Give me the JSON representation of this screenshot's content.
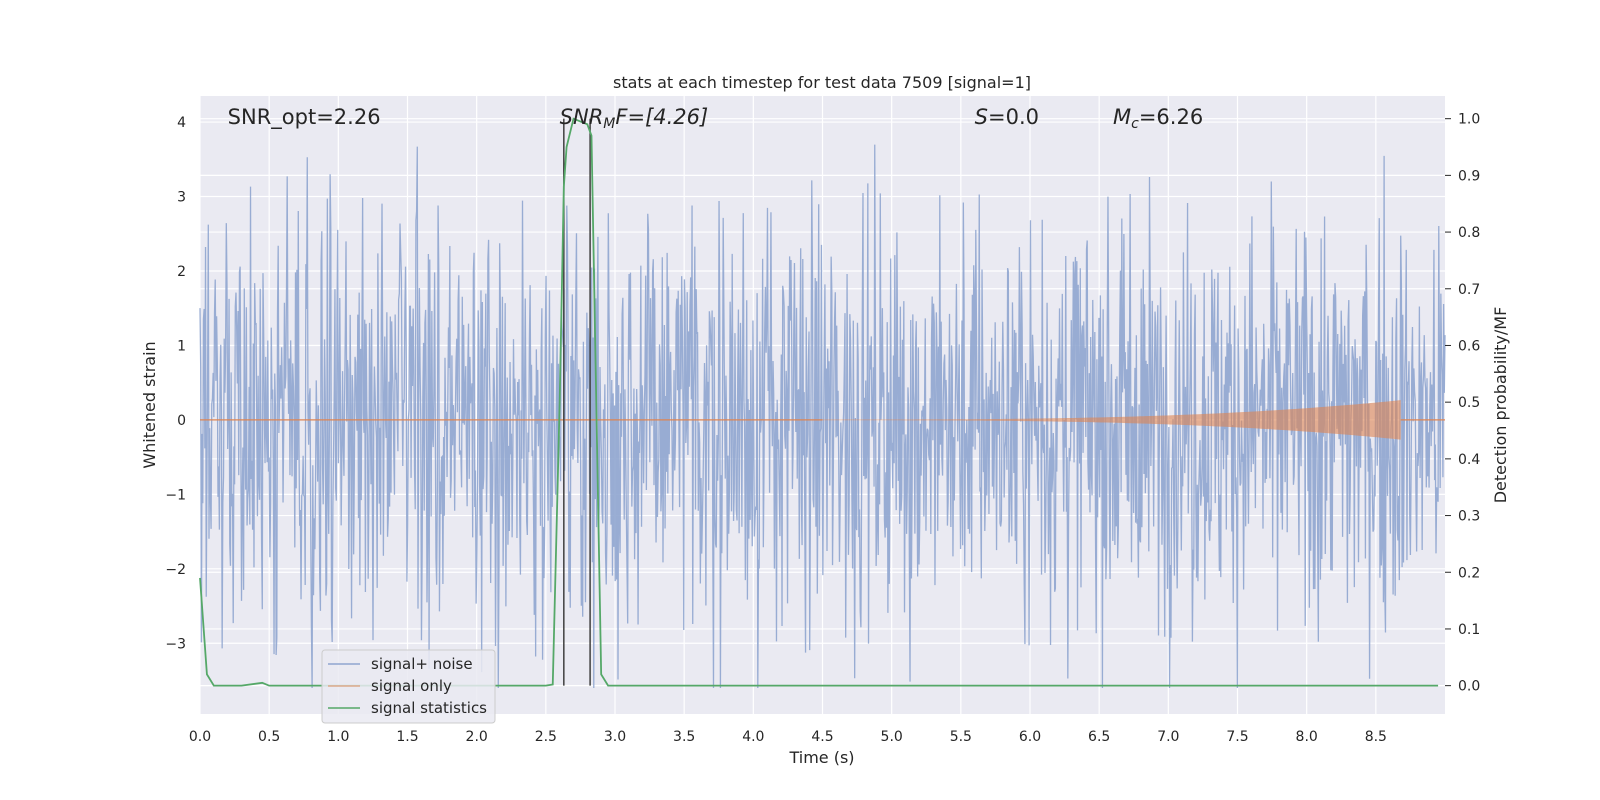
{
  "chart_data": {
    "type": "line",
    "title": "stats at each timestep for test data 7509 [signal=1]",
    "xlabel": "Time (s)",
    "ylabel": "Whitened strain",
    "ylabel_right": "Detection probability/MF",
    "xlim": [
      0,
      9.0
    ],
    "ylim": [
      -3.95,
      4.35
    ],
    "ylim_right": [
      -0.05,
      1.04
    ],
    "xticks": [
      "0.0",
      "0.5",
      "1.0",
      "1.5",
      "2.0",
      "2.5",
      "3.0",
      "3.5",
      "4.0",
      "4.5",
      "5.0",
      "5.5",
      "6.0",
      "6.5",
      "7.0",
      "7.5",
      "8.0",
      "8.5"
    ],
    "xtick_values": [
      0,
      0.5,
      1.0,
      1.5,
      2.0,
      2.5,
      3.0,
      3.5,
      4.0,
      4.5,
      5.0,
      5.5,
      6.0,
      6.5,
      7.0,
      7.5,
      8.0,
      8.5
    ],
    "yticks": [
      "−3",
      "−2",
      "−1",
      "0",
      "1",
      "2",
      "3",
      "4"
    ],
    "ytick_values": [
      -3,
      -2,
      -1,
      0,
      1,
      2,
      3,
      4
    ],
    "yticks_right": [
      "0.0",
      "0.1",
      "0.2",
      "0.3",
      "0.4",
      "0.5",
      "0.6",
      "0.7",
      "0.8",
      "0.9",
      "1.0"
    ],
    "ytick_values_right": [
      0,
      0.1,
      0.2,
      0.3,
      0.4,
      0.5,
      0.6,
      0.7,
      0.8,
      0.9,
      1.0
    ],
    "grid": true,
    "legend_position": "lower-left",
    "annotations": {
      "snr_opt": "SNR_opt=2.26",
      "snr_mf_main": "SNR",
      "snr_mf_sub": "M",
      "snr_mf_rest": "F=[4.26]",
      "s_main": "S",
      "s_rest": "=0.0",
      "mc_main": "M",
      "mc_sub": "c",
      "mc_rest": "=6.26"
    },
    "annotation_positions_x": {
      "snr_opt": 0.2,
      "snr_mf": 2.6,
      "s": 5.6,
      "mc": 6.6
    },
    "vertical_lines_x": [
      2.63,
      2.82
    ],
    "series": [
      {
        "name": "signal+ noise",
        "color": "#8fa5cf",
        "description_values": "white noise, |amplitude| up to ~4",
        "t_start": 0,
        "t_end": 9.0,
        "n_samples": 1800,
        "approx_std": 1.35
      },
      {
        "name": "signal only",
        "color": "#dd8452",
        "chirp_start": 4.5,
        "chirp_end": 8.68,
        "peak_amplitude": 0.26
      },
      {
        "name": "signal statistics",
        "color": "#55a868",
        "axis": "right",
        "x": [
          0.0,
          0.05,
          0.1,
          0.15,
          0.3,
          0.45,
          0.5,
          2.5,
          2.55,
          2.6,
          2.63,
          2.65,
          2.7,
          2.8,
          2.83,
          2.9,
          2.95,
          3.0,
          8.95
        ],
        "y": [
          0.19,
          0.02,
          0.0,
          0.0,
          0.0,
          0.005,
          0.0,
          0.0,
          0.002,
          0.5,
          0.88,
          0.95,
          1.0,
          0.99,
          0.97,
          0.02,
          0.0,
          0.0,
          0.0
        ]
      }
    ],
    "colors": {
      "background": "#eaeaf2",
      "grid": "#ffffff",
      "vline": "#404040"
    }
  }
}
